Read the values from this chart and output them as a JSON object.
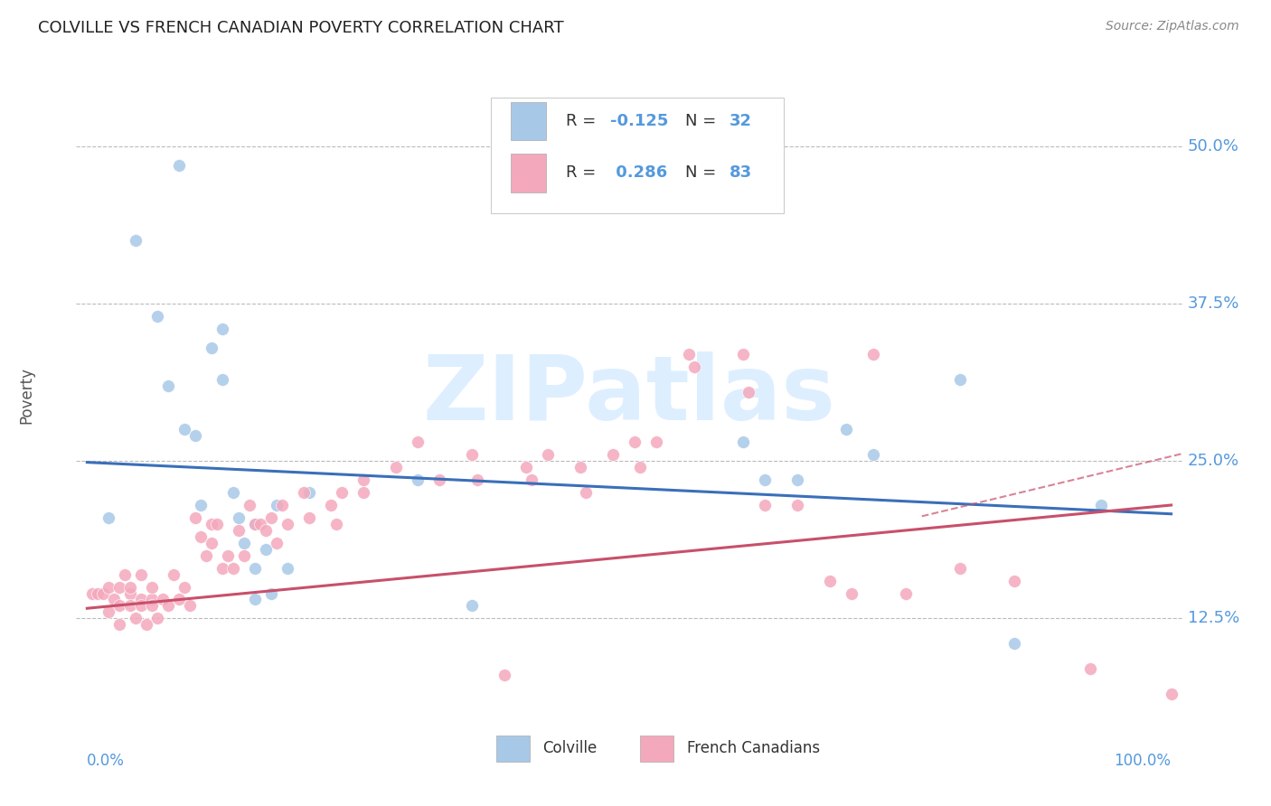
{
  "title": "COLVILLE VS FRENCH CANADIAN POVERTY CORRELATION CHART",
  "source": "Source: ZipAtlas.com",
  "ylabel": "Poverty",
  "ytick_labels": [
    "12.5%",
    "25.0%",
    "37.5%",
    "50.0%"
  ],
  "ytick_values": [
    0.125,
    0.25,
    0.375,
    0.5
  ],
  "xlim": [
    -0.01,
    1.01
  ],
  "ylim": [
    0.04,
    0.565
  ],
  "colville_color": "#a8c8e8",
  "french_color": "#f4a8bc",
  "colville_line_color": "#3a6fba",
  "french_line_color": "#c8506a",
  "axis_label_color": "#5599dd",
  "text_color": "#333333",
  "watermark_text": "ZIPatlas",
  "watermark_color": "#ddeeff",
  "legend_r1": "R = -0.125   N = 32",
  "legend_r2": "R =  0.286   N = 83",
  "colville_points": [
    [
      0.02,
      0.205
    ],
    [
      0.045,
      0.425
    ],
    [
      0.065,
      0.365
    ],
    [
      0.075,
      0.31
    ],
    [
      0.085,
      0.485
    ],
    [
      0.09,
      0.275
    ],
    [
      0.1,
      0.27
    ],
    [
      0.105,
      0.215
    ],
    [
      0.115,
      0.34
    ],
    [
      0.125,
      0.355
    ],
    [
      0.125,
      0.315
    ],
    [
      0.135,
      0.225
    ],
    [
      0.14,
      0.205
    ],
    [
      0.145,
      0.185
    ],
    [
      0.155,
      0.2
    ],
    [
      0.155,
      0.165
    ],
    [
      0.155,
      0.14
    ],
    [
      0.165,
      0.18
    ],
    [
      0.17,
      0.145
    ],
    [
      0.175,
      0.215
    ],
    [
      0.185,
      0.165
    ],
    [
      0.205,
      0.225
    ],
    [
      0.305,
      0.235
    ],
    [
      0.355,
      0.135
    ],
    [
      0.605,
      0.265
    ],
    [
      0.625,
      0.235
    ],
    [
      0.655,
      0.235
    ],
    [
      0.7,
      0.275
    ],
    [
      0.725,
      0.255
    ],
    [
      0.805,
      0.315
    ],
    [
      0.855,
      0.105
    ],
    [
      0.935,
      0.215
    ]
  ],
  "french_points": [
    [
      0.005,
      0.145
    ],
    [
      0.01,
      0.145
    ],
    [
      0.015,
      0.145
    ],
    [
      0.02,
      0.15
    ],
    [
      0.02,
      0.13
    ],
    [
      0.025,
      0.14
    ],
    [
      0.03,
      0.135
    ],
    [
      0.03,
      0.15
    ],
    [
      0.03,
      0.12
    ],
    [
      0.035,
      0.16
    ],
    [
      0.04,
      0.145
    ],
    [
      0.04,
      0.135
    ],
    [
      0.04,
      0.15
    ],
    [
      0.045,
      0.125
    ],
    [
      0.05,
      0.14
    ],
    [
      0.05,
      0.16
    ],
    [
      0.05,
      0.135
    ],
    [
      0.055,
      0.12
    ],
    [
      0.06,
      0.14
    ],
    [
      0.06,
      0.135
    ],
    [
      0.06,
      0.15
    ],
    [
      0.065,
      0.125
    ],
    [
      0.07,
      0.14
    ],
    [
      0.075,
      0.135
    ],
    [
      0.08,
      0.16
    ],
    [
      0.085,
      0.14
    ],
    [
      0.09,
      0.15
    ],
    [
      0.095,
      0.135
    ],
    [
      0.1,
      0.205
    ],
    [
      0.105,
      0.19
    ],
    [
      0.11,
      0.175
    ],
    [
      0.115,
      0.2
    ],
    [
      0.115,
      0.185
    ],
    [
      0.12,
      0.2
    ],
    [
      0.125,
      0.165
    ],
    [
      0.13,
      0.175
    ],
    [
      0.135,
      0.165
    ],
    [
      0.14,
      0.195
    ],
    [
      0.145,
      0.175
    ],
    [
      0.15,
      0.215
    ],
    [
      0.155,
      0.2
    ],
    [
      0.16,
      0.2
    ],
    [
      0.165,
      0.195
    ],
    [
      0.17,
      0.205
    ],
    [
      0.175,
      0.185
    ],
    [
      0.18,
      0.215
    ],
    [
      0.185,
      0.2
    ],
    [
      0.2,
      0.225
    ],
    [
      0.205,
      0.205
    ],
    [
      0.225,
      0.215
    ],
    [
      0.23,
      0.2
    ],
    [
      0.235,
      0.225
    ],
    [
      0.255,
      0.235
    ],
    [
      0.255,
      0.225
    ],
    [
      0.285,
      0.245
    ],
    [
      0.305,
      0.265
    ],
    [
      0.325,
      0.235
    ],
    [
      0.355,
      0.255
    ],
    [
      0.36,
      0.235
    ],
    [
      0.385,
      0.08
    ],
    [
      0.405,
      0.245
    ],
    [
      0.41,
      0.235
    ],
    [
      0.425,
      0.255
    ],
    [
      0.455,
      0.245
    ],
    [
      0.46,
      0.225
    ],
    [
      0.485,
      0.255
    ],
    [
      0.505,
      0.265
    ],
    [
      0.51,
      0.245
    ],
    [
      0.525,
      0.265
    ],
    [
      0.555,
      0.335
    ],
    [
      0.56,
      0.325
    ],
    [
      0.605,
      0.335
    ],
    [
      0.61,
      0.305
    ],
    [
      0.625,
      0.215
    ],
    [
      0.655,
      0.215
    ],
    [
      0.685,
      0.155
    ],
    [
      0.705,
      0.145
    ],
    [
      0.725,
      0.335
    ],
    [
      0.755,
      0.145
    ],
    [
      0.805,
      0.165
    ],
    [
      0.855,
      0.155
    ],
    [
      0.925,
      0.085
    ],
    [
      1.0,
      0.065
    ]
  ],
  "colville_line": [
    0.0,
    0.249,
    1.0,
    0.208
  ],
  "french_line": [
    0.0,
    0.133,
    1.0,
    0.215
  ]
}
